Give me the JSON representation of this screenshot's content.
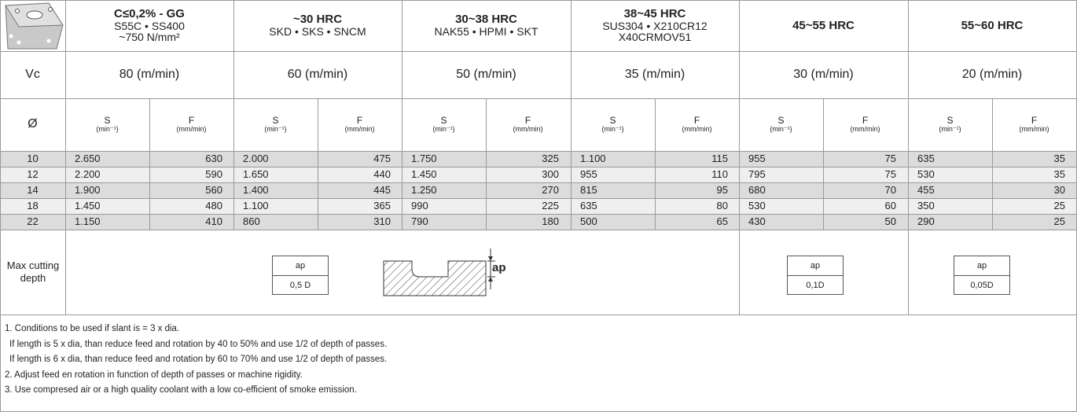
{
  "header": {
    "groups": [
      {
        "title": "C≤0,2% - GG",
        "lines": [
          "S55C • SS400",
          "~750 N/mm²"
        ]
      },
      {
        "title": "~30 HRC",
        "lines": [
          "SKD • SKS • SNCM"
        ]
      },
      {
        "title": "30~38 HRC",
        "lines": [
          "NAK55 • HPMI • SKT"
        ]
      },
      {
        "title": "38~45 HRC",
        "lines": [
          "SUS304 • X210CR12",
          "X40CRMOV51"
        ]
      },
      {
        "title": "45~55 HRC",
        "lines": []
      },
      {
        "title": "55~60 HRC",
        "lines": []
      }
    ]
  },
  "vc": {
    "label": "Vc",
    "values": [
      "80 (m/min)",
      "60 (m/min)",
      "50 (m/min)",
      "35 (m/min)",
      "30 (m/min)",
      "20 (m/min)"
    ]
  },
  "columns": {
    "label": "Ø",
    "s": "S",
    "s_unit": "(min⁻¹)",
    "f": "F",
    "f_unit": "(mm/min)"
  },
  "rows": [
    {
      "d": "10",
      "values": [
        "2.650",
        "630",
        "2.000",
        "475",
        "1.750",
        "325",
        "1.100",
        "115",
        "955",
        "75",
        "635",
        "35"
      ]
    },
    {
      "d": "12",
      "values": [
        "2.200",
        "590",
        "1.650",
        "440",
        "1.450",
        "300",
        "955",
        "110",
        "795",
        "75",
        "530",
        "35"
      ]
    },
    {
      "d": "14",
      "values": [
        "1.900",
        "560",
        "1.400",
        "445",
        "1.250",
        "270",
        "815",
        "95",
        "680",
        "70",
        "455",
        "30"
      ]
    },
    {
      "d": "18",
      "values": [
        "1.450",
        "480",
        "1.100",
        "365",
        "990",
        "225",
        "635",
        "80",
        "530",
        "60",
        "350",
        "25"
      ]
    },
    {
      "d": "22",
      "values": [
        "1.150",
        "410",
        "860",
        "310",
        "790",
        "180",
        "500",
        "65",
        "430",
        "50",
        "290",
        "25"
      ]
    }
  ],
  "depth": {
    "label": "Max cutting depth",
    "diagram_label": "ap",
    "boxes": [
      {
        "top": "ap",
        "bottom": "0,5 D"
      },
      {
        "top": "ap",
        "bottom": "0,1D"
      },
      {
        "top": "ap",
        "bottom": "0,05D"
      }
    ]
  },
  "notes": [
    "1. Conditions to be used if slant is = 3 x dia.",
    "If length is 5 x dia, than reduce feed and rotation by 40 to 50% and use 1/2 of depth of passes.",
    "If length is 6 x dia, than reduce feed and rotation by 60 to 70% and use 1/2 of depth of passes.",
    "2. Adjust feed en rotation in function of depth of passes or machine rigidity.",
    "3. Use compresed air or a high quality coolant with a low co-efficient of smoke emission."
  ]
}
